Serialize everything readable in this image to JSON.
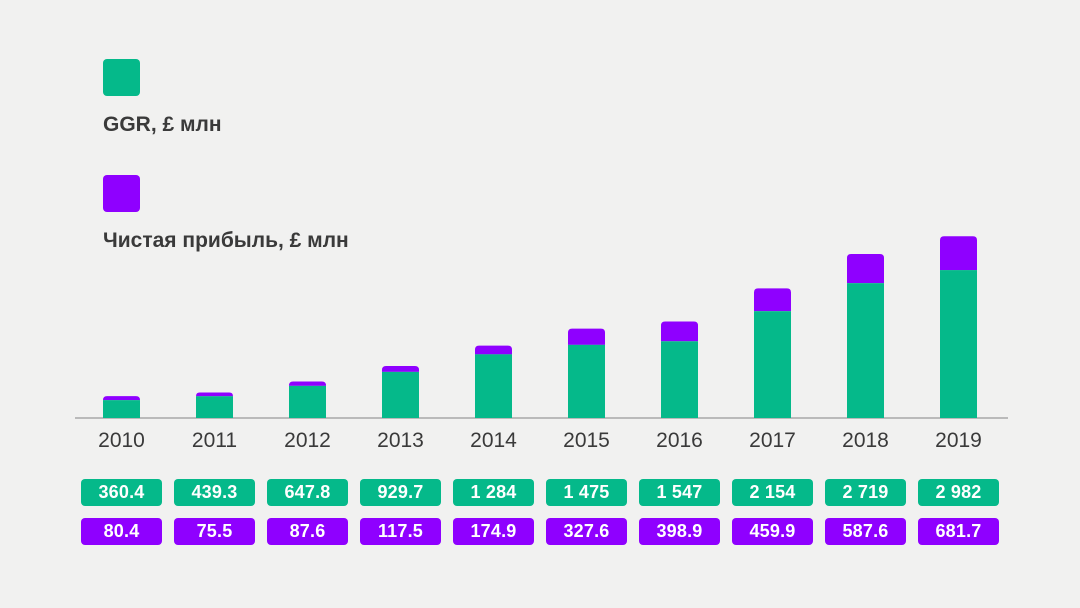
{
  "colors": {
    "ggr": "#05b98a",
    "profit": "#8f00ff",
    "axis": "#9a9a9a",
    "year": "#3a3a3a"
  },
  "legend": [
    {
      "label": "GGR, £ млн",
      "color": "#05b98a"
    },
    {
      "label": "Чистая прибыль, £ млн",
      "color": "#8f00ff"
    }
  ],
  "chart_data": {
    "type": "bar",
    "stacked": true,
    "categories": [
      "2010",
      "2011",
      "2012",
      "2013",
      "2014",
      "2015",
      "2016",
      "2017",
      "2018",
      "2019"
    ],
    "series": [
      {
        "name": "GGR, £ млн",
        "values": [
          360.4,
          439.3,
          647.8,
          929.7,
          1284,
          1475,
          1547,
          2154,
          2719,
          2982
        ]
      },
      {
        "name": "Чистая прибыль, £ млн",
        "values": [
          80.4,
          75.5,
          87.6,
          117.5,
          174.9,
          327.6,
          398.9,
          459.9,
          587.6,
          681.7
        ]
      }
    ],
    "value_labels": {
      "ggr": [
        "360.4",
        "439.3",
        "647.8",
        "929.7",
        "1 284",
        "1 475",
        "1 547",
        "2 154",
        "2 719",
        "2 982"
      ],
      "profit": [
        "80.4",
        "75.5",
        "87.6",
        "117.5",
        "174.9",
        "327.6",
        "398.9",
        "459.9",
        "587.6",
        "681.7"
      ]
    },
    "grid": false,
    "legend_position": "top-left"
  }
}
